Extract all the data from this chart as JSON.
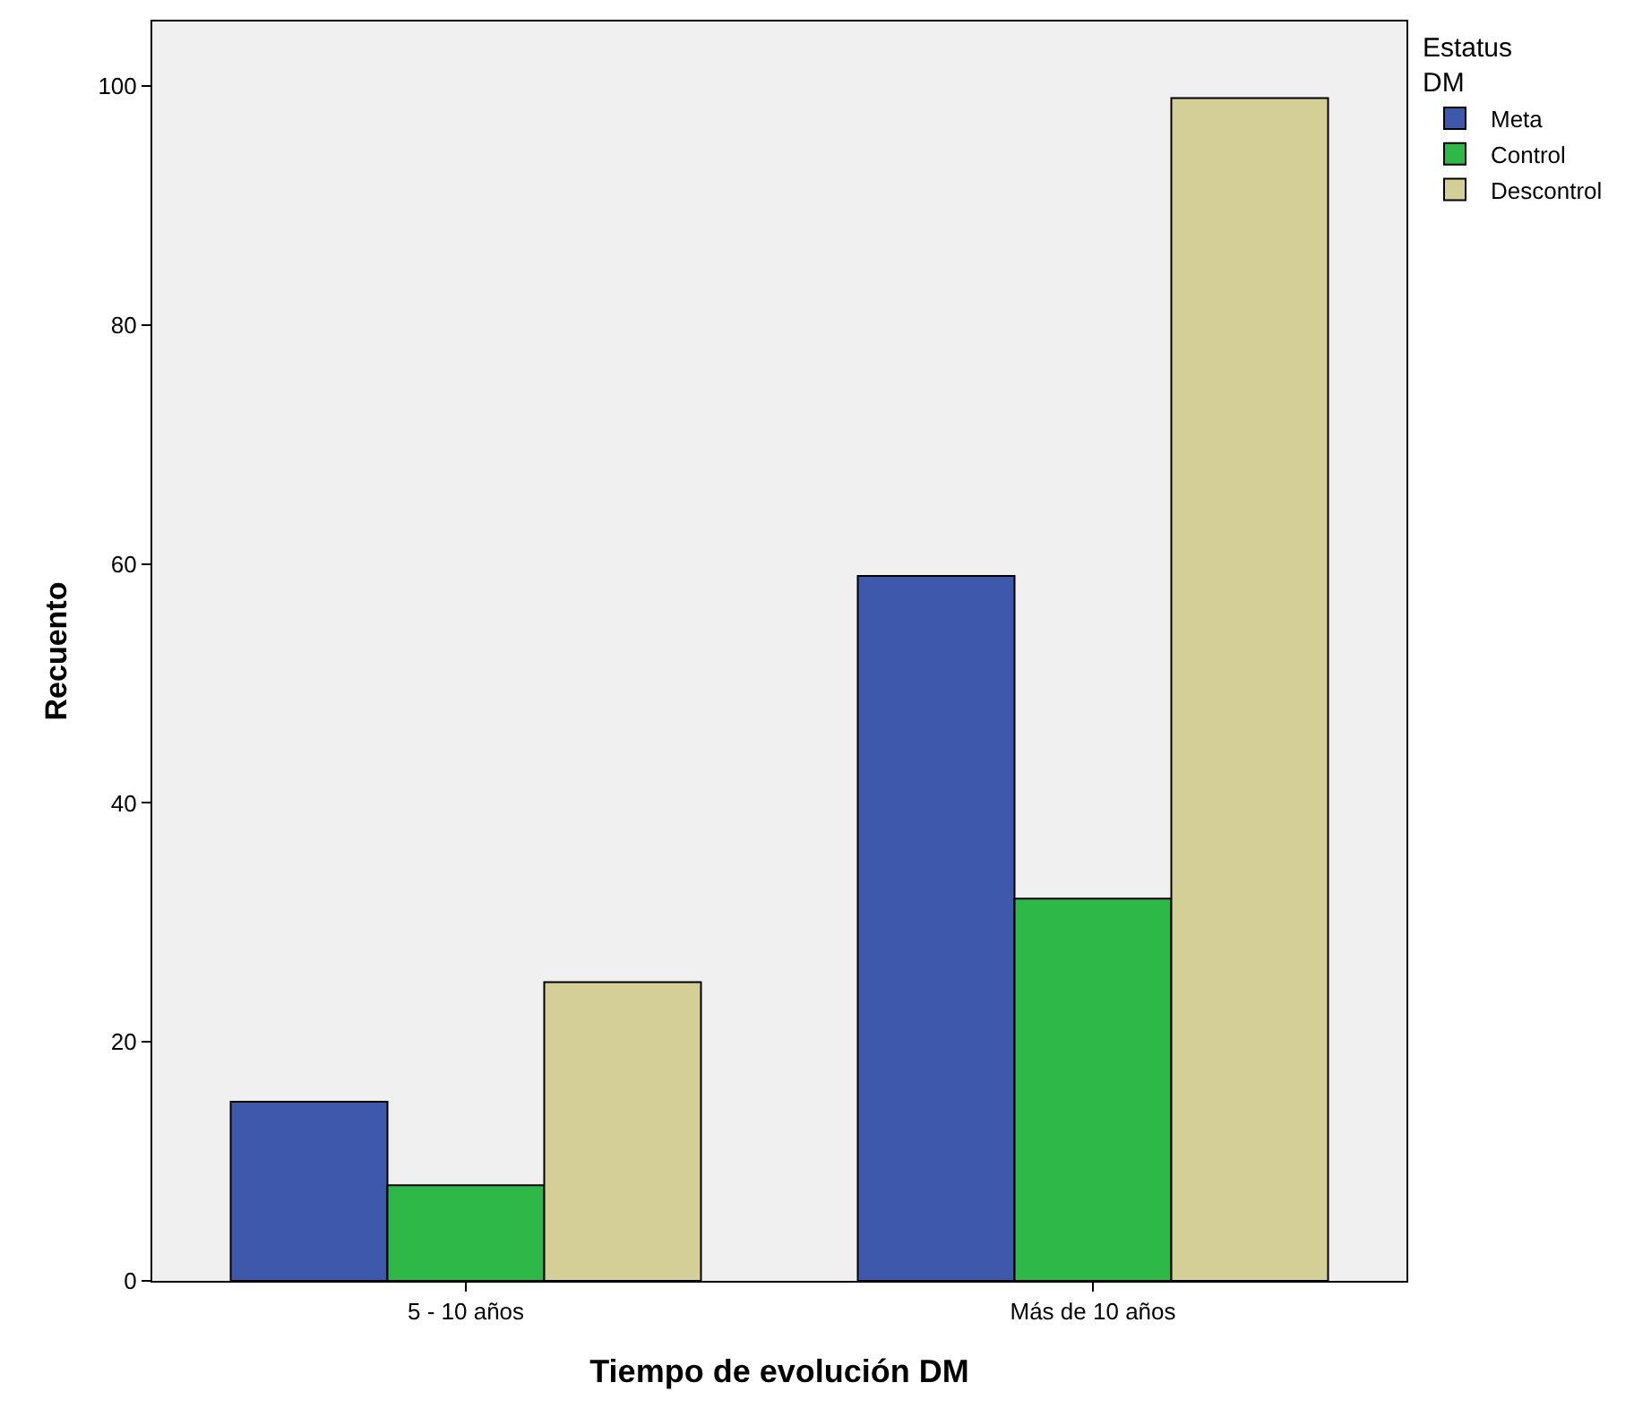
{
  "chart_data": {
    "type": "bar",
    "xlabel": "Tiempo de evolución DM",
    "ylabel": "Recuento",
    "legend_title": "Estatus\nDM",
    "categories": [
      "5 - 10 años",
      "Más de 10 años"
    ],
    "series": [
      {
        "name": "Meta",
        "color": "#3e58ac",
        "values": [
          15,
          59
        ]
      },
      {
        "name": "Control",
        "color": "#2eb848",
        "values": [
          8,
          32
        ]
      },
      {
        "name": "Descontrol",
        "color": "#d4cf96",
        "values": [
          25,
          99
        ]
      }
    ],
    "ylim": [
      0,
      105.4
    ],
    "yticks": [
      0,
      20,
      40,
      60,
      80,
      100
    ],
    "grid": false,
    "legend": "top right"
  }
}
